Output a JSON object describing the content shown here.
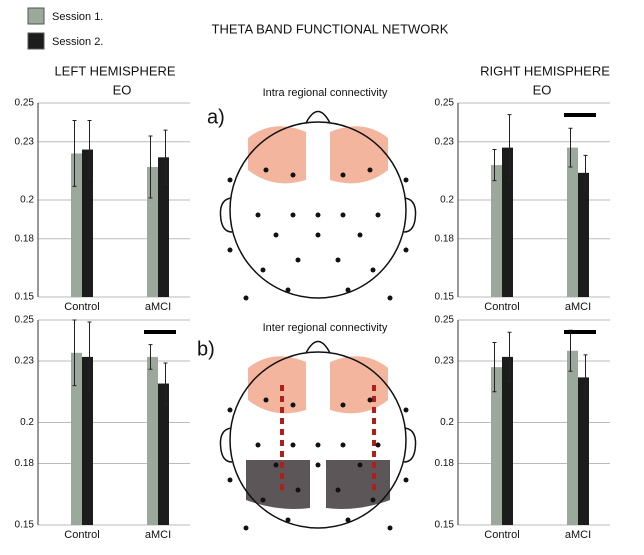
{
  "figure": {
    "title": "THETA BAND FUNCTIONAL NETWORK",
    "left_label": "LEFT HEMISPHERE",
    "right_label": "RIGHT HEMISPHERE",
    "panels": [
      {
        "label": "a)",
        "title": "Intra regional connectivity"
      },
      {
        "label": "b)",
        "title": "Inter regional connectivity"
      }
    ]
  },
  "chart_data": [
    {
      "type": "bar",
      "subtitle": "EO",
      "categories": [
        "Control",
        "aMCI"
      ],
      "significant": [
        false,
        false
      ],
      "ylim": [
        0.15,
        0.25
      ],
      "yticks": [
        0.15,
        0.18,
        0.2,
        0.23,
        0.25
      ],
      "series": [
        {
          "name": "Session 1.",
          "color": "#9aa99c",
          "values": [
            0.224,
            0.217
          ],
          "errors": [
            0.017,
            0.016
          ]
        },
        {
          "name": "Session 2.",
          "color": "#1c1c1c",
          "values": [
            0.226,
            0.222
          ],
          "errors": [
            0.015,
            0.014
          ]
        }
      ]
    },
    {
      "type": "bar",
      "subtitle": "EO",
      "categories": [
        "Control",
        "aMCI"
      ],
      "significant": [
        false,
        true
      ],
      "ylim": [
        0.15,
        0.25
      ],
      "yticks": [
        0.15,
        0.18,
        0.2,
        0.23,
        0.25
      ],
      "series": [
        {
          "name": "Session 1.",
          "color": "#9aa99c",
          "values": [
            0.218,
            0.227
          ],
          "errors": [
            0.008,
            0.01
          ]
        },
        {
          "name": "Session 2.",
          "color": "#1c1c1c",
          "values": [
            0.227,
            0.214
          ],
          "errors": [
            0.017,
            0.009
          ]
        }
      ]
    },
    {
      "type": "bar",
      "categories": [
        "Control",
        "aMCI"
      ],
      "significant": [
        false,
        true
      ],
      "ylim": [
        0.15,
        0.25
      ],
      "yticks": [
        0.15,
        0.18,
        0.2,
        0.23,
        0.25
      ],
      "series": [
        {
          "name": "Session 1.",
          "color": "#9aa99c",
          "values": [
            0.234,
            0.232
          ],
          "errors": [
            0.016,
            0.006
          ]
        },
        {
          "name": "Session 2.",
          "color": "#1c1c1c",
          "values": [
            0.232,
            0.219
          ],
          "errors": [
            0.017,
            0.01
          ]
        }
      ]
    },
    {
      "type": "bar",
      "categories": [
        "Control",
        "aMCI"
      ],
      "significant": [
        false,
        true
      ],
      "ylim": [
        0.15,
        0.25
      ],
      "yticks": [
        0.15,
        0.18,
        0.2,
        0.23,
        0.25
      ],
      "series": [
        {
          "name": "Session 1.",
          "color": "#9aa99c",
          "values": [
            0.227,
            0.235
          ],
          "errors": [
            0.012,
            0.01
          ]
        },
        {
          "name": "Session 2.",
          "color": "#1c1c1c",
          "values": [
            0.232,
            0.222
          ],
          "errors": [
            0.012,
            0.011
          ]
        }
      ]
    }
  ]
}
